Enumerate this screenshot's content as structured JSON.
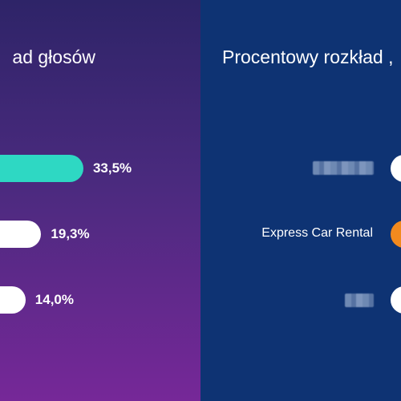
{
  "left_panel": {
    "title": "ad głosów"
  },
  "right_panel": {
    "title": "Procentowy rozkład ,",
    "visible_label": "Express Car Rental"
  },
  "chart_data": [
    {
      "type": "bar",
      "orientation": "horizontal",
      "title": "ad głosów",
      "values": [
        33.5,
        19.3,
        14.0
      ],
      "value_labels": [
        "33,5%",
        "19,3%",
        "14,0%"
      ],
      "colors": [
        "#2ed8c3",
        "#ffffff",
        "#ffffff"
      ]
    },
    {
      "type": "bar",
      "orientation": "horizontal",
      "title": "Procentowy rozkład ,",
      "categories": [
        "",
        "Express Car Rental",
        ""
      ],
      "colors": [
        "#ffffff",
        "#f28a1e",
        "#ffffff"
      ]
    }
  ]
}
